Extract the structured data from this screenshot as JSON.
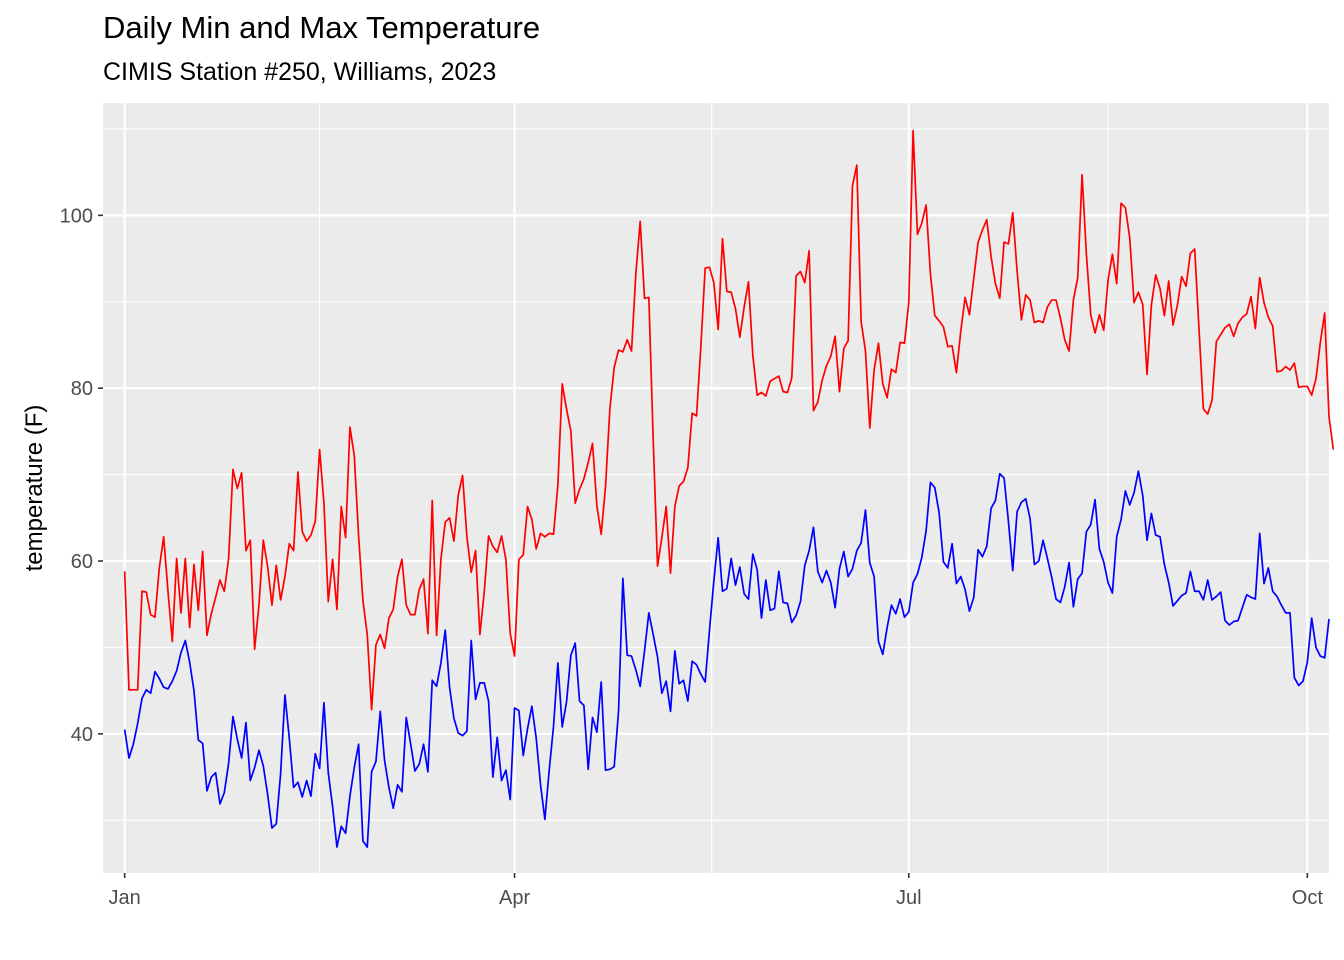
{
  "chart_data": {
    "type": "line",
    "title": "Daily Min and Max Temperature",
    "subtitle": "CIMIS Station #250, Williams, 2023",
    "xlabel": "",
    "ylabel": "temperature (F)",
    "x_start": "2023-01-01",
    "x_end": "2023-09-30",
    "xlim": [
      "2022-12-27",
      "2023-10-06"
    ],
    "ylim": [
      23.9,
      113.0
    ],
    "x_ticks": [
      {
        "date": "2023-01-01",
        "label": "Jan"
      },
      {
        "date": "2023-04-01",
        "label": "Apr"
      },
      {
        "date": "2023-07-01",
        "label": "Jul"
      },
      {
        "date": "2023-10-01",
        "label": "Oct"
      }
    ],
    "y_ticks": [
      40,
      60,
      80,
      100
    ],
    "grid": true,
    "legend": "none",
    "series": [
      {
        "color": "#ff0000",
        "values": [
          58.8,
          45.1,
          45.1,
          45.1,
          56.5,
          56.4,
          53.8,
          53.5,
          59.2,
          62.8,
          56.5,
          50.7,
          60.3,
          54.0,
          60.3,
          52.3,
          59.6,
          54.3,
          61.1,
          51.4,
          53.9,
          55.8,
          57.8,
          56.5,
          60.3,
          70.6,
          68.4,
          70.2,
          61.2,
          62.4,
          49.8,
          54.9,
          62.4,
          59.4,
          54.9,
          59.5,
          55.5,
          58.2,
          62.0,
          61.2,
          70.3,
          63.4,
          62.3,
          63.0,
          64.6,
          72.9,
          66.7,
          55.3,
          60.2,
          54.4,
          66.3,
          62.7,
          75.5,
          72.2,
          62.9,
          55.4,
          51.5,
          42.8,
          50.3,
          51.5,
          49.9,
          53.4,
          54.4,
          58.2,
          60.2,
          54.9,
          53.8,
          53.8,
          56.7,
          57.9,
          51.6,
          67.0,
          51.4,
          60.2,
          64.5,
          65.0,
          62.3,
          67.6,
          69.9,
          62.8,
          58.7,
          61.2,
          51.5,
          56.4,
          62.9,
          61.7,
          61.0,
          62.9,
          60.2,
          51.6,
          49.0,
          60.2,
          60.7,
          66.3,
          64.8,
          61.4,
          63.2,
          62.8,
          63.2,
          63.1,
          68.8,
          80.5,
          77.6,
          75.0,
          66.7,
          68.3,
          69.5,
          71.4,
          73.6,
          66.4,
          63.1,
          68.6,
          77.6,
          82.4,
          84.4,
          84.2,
          85.6,
          84.3,
          93.3,
          99.3,
          90.4,
          90.5,
          74.1,
          59.4,
          62.7,
          66.3,
          58.6,
          66.3,
          68.7,
          69.2,
          70.8,
          77.1,
          76.8,
          84.8,
          93.9,
          94.0,
          92.2,
          86.8,
          97.3,
          91.2,
          91.1,
          89.2,
          85.9,
          89.4,
          92.3,
          83.8,
          79.2,
          79.5,
          79.1,
          80.8,
          81.1,
          81.4,
          79.6,
          79.5,
          81.2,
          93.0,
          93.5,
          92.2,
          95.9,
          77.4,
          78.4,
          80.9,
          82.6,
          83.7,
          86.0,
          79.6,
          84.6,
          85.5,
          103.4,
          105.8,
          87.7,
          84.3,
          75.4,
          82.1,
          85.2,
          80.5,
          78.9,
          82.2,
          81.8,
          85.3,
          85.2,
          89.9,
          109.8,
          97.8,
          99.1,
          101.2,
          93.2,
          88.4,
          87.8,
          87.1,
          84.8,
          84.9,
          81.8,
          86.6,
          90.5,
          88.5,
          92.7,
          96.9,
          98.3,
          99.5,
          95.2,
          92.1,
          90.4,
          96.9,
          96.7,
          100.3,
          93.6,
          87.9,
          90.8,
          90.2,
          87.6,
          87.8,
          87.6,
          89.4,
          90.2,
          90.2,
          88.1,
          85.6,
          84.3,
          90.2,
          92.8,
          104.7,
          95.5,
          88.5,
          86.4,
          88.5,
          86.7,
          92.5,
          95.5,
          92.1,
          101.4,
          100.9,
          97.4,
          89.9,
          91.1,
          89.7,
          81.6,
          89.6,
          93.1,
          91.5,
          88.4,
          92.4,
          87.3,
          89.6,
          92.9,
          91.8,
          95.6,
          96.1,
          86.8,
          77.6,
          77.0,
          78.6,
          85.4,
          86.2,
          87.0,
          87.4,
          86.0,
          87.5,
          88.2,
          88.6,
          90.6,
          86.9,
          92.8,
          89.9,
          88.2,
          87.2,
          81.9,
          82.0,
          82.5,
          82.1,
          82.9,
          80.1,
          80.2,
          80.2,
          79.2,
          81.1,
          85.3,
          88.7,
          76.7,
          72.9
        ]
      },
      {
        "color": "#0000ff",
        "values": [
          40.5,
          37.2,
          38.8,
          41.2,
          44.1,
          45.1,
          44.7,
          47.2,
          46.4,
          45.4,
          45.2,
          46.1,
          47.3,
          49.4,
          50.8,
          48.3,
          45.0,
          39.3,
          38.9,
          33.4,
          35.0,
          35.5,
          31.9,
          33.2,
          36.6,
          42.0,
          39.4,
          37.2,
          41.3,
          34.6,
          36.1,
          38.1,
          36.3,
          33.0,
          29.1,
          29.6,
          35.4,
          44.5,
          39.5,
          33.8,
          34.4,
          32.7,
          34.6,
          32.8,
          37.7,
          36.0,
          43.6,
          35.5,
          31.6,
          26.9,
          29.3,
          28.5,
          32.8,
          36.1,
          38.8,
          27.6,
          26.9,
          35.6,
          36.8,
          42.6,
          36.9,
          33.8,
          31.4,
          34.1,
          33.3,
          41.9,
          38.9,
          35.7,
          36.5,
          38.8,
          35.6,
          46.2,
          45.5,
          48.2,
          52.0,
          45.4,
          41.8,
          40.1,
          39.8,
          40.3,
          50.8,
          44.0,
          45.9,
          45.9,
          43.8,
          35.0,
          39.6,
          34.6,
          35.8,
          32.4,
          43.0,
          42.7,
          37.5,
          40.6,
          43.2,
          39.5,
          34.1,
          30.1,
          35.8,
          40.9,
          48.2,
          40.8,
          43.7,
          49.1,
          50.5,
          43.8,
          43.3,
          35.9,
          41.9,
          40.2,
          46.0,
          35.8,
          35.9,
          36.2,
          42.6,
          58.0,
          49.1,
          49.0,
          47.4,
          45.5,
          49.6,
          54.0,
          51.5,
          48.9,
          44.7,
          46.1,
          42.6,
          49.6,
          45.8,
          46.2,
          43.8,
          48.4,
          48.0,
          46.9,
          46.0,
          52.0,
          57.7,
          62.7,
          56.5,
          56.8,
          60.3,
          57.2,
          59.3,
          56.2,
          55.6,
          60.8,
          59.0,
          53.4,
          57.8,
          54.3,
          54.5,
          58.8,
          55.2,
          55.1,
          52.9,
          53.7,
          55.3,
          59.5,
          61.2,
          63.9,
          58.8,
          57.5,
          58.9,
          57.5,
          54.6,
          59.1,
          61.1,
          58.2,
          59.1,
          61.2,
          62.1,
          65.9,
          59.8,
          58.2,
          50.7,
          49.2,
          52.3,
          54.9,
          53.9,
          55.6,
          53.5,
          54.1,
          57.5,
          58.5,
          60.4,
          63.5,
          69.1,
          68.5,
          65.6,
          59.9,
          59.2,
          62.0,
          57.4,
          58.2,
          56.7,
          54.2,
          55.8,
          61.3,
          60.5,
          61.7,
          66.1,
          67.0,
          70.1,
          69.6,
          64.6,
          58.9,
          65.7,
          66.8,
          67.2,
          64.9,
          59.6,
          60.0,
          62.4,
          60.3,
          58.1,
          55.6,
          55.2,
          57.0,
          59.8,
          54.7,
          57.9,
          58.6,
          63.4,
          64.2,
          67.1,
          61.4,
          59.9,
          57.5,
          56.3,
          62.8,
          64.8,
          68.1,
          66.5,
          67.9,
          70.4,
          67.6,
          62.4,
          65.5,
          63.0,
          62.8,
          59.6,
          57.5,
          54.8,
          55.4,
          56.0,
          56.3,
          58.8,
          56.5,
          56.5,
          55.5,
          57.8,
          55.5,
          55.9,
          56.4,
          53.1,
          52.6,
          53.0,
          53.1,
          54.6,
          56.1,
          55.8,
          55.6,
          63.2,
          57.4,
          59.2,
          56.5,
          55.9,
          54.9,
          54.0,
          54.0,
          46.5,
          45.6,
          46.1,
          48.3,
          53.4,
          50.0,
          49.0,
          48.8,
          53.3
        ]
      }
    ]
  }
}
